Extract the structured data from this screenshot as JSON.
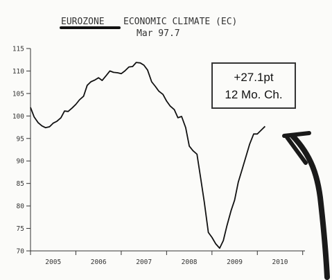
{
  "chart_data": {
    "type": "line",
    "title_highlight": "EUROZONE",
    "title_rest": "ECONOMIC CLIMATE  (EC)",
    "subtitle": "Mar 97.7",
    "xlabel": "",
    "ylabel": "",
    "ylim": [
      70,
      115
    ],
    "yticks": [
      70,
      75,
      80,
      85,
      90,
      95,
      100,
      105,
      110,
      115
    ],
    "xlim": [
      2005.0,
      2011.05
    ],
    "xtick_labels": [
      {
        "label": "2005",
        "year": 2005
      },
      {
        "label": "2006",
        "year": 2006
      },
      {
        "label": "2007",
        "year": 2007
      },
      {
        "label": "2008",
        "year": 2008
      },
      {
        "label": "2009",
        "year": 2009
      },
      {
        "label": "2010",
        "year": 2010
      }
    ],
    "legend": "none",
    "series": [
      {
        "x": [
          2005.0,
          2005.08,
          2005.17,
          2005.25,
          2005.33,
          2005.42,
          2005.5,
          2005.58,
          2005.67,
          2005.75,
          2005.83,
          2005.92,
          2006.0,
          2006.08,
          2006.17,
          2006.25,
          2006.33,
          2006.42,
          2006.5,
          2006.58,
          2006.67,
          2006.75,
          2006.83,
          2006.92,
          2007.0,
          2007.08,
          2007.17,
          2007.25,
          2007.33,
          2007.42,
          2007.5,
          2007.58,
          2007.67,
          2007.75,
          2007.83,
          2007.92,
          2008.0,
          2008.08,
          2008.17,
          2008.25,
          2008.33,
          2008.42,
          2008.5,
          2008.58,
          2008.67,
          2008.75,
          2008.83,
          2008.92,
          2009.0,
          2009.08,
          2009.17,
          2009.25,
          2009.33,
          2009.42,
          2009.5,
          2009.58,
          2009.67,
          2009.75,
          2009.83,
          2009.92,
          2010.0,
          2010.08,
          2010.17
        ],
        "values": [
          101.9,
          99.8,
          98.5,
          97.8,
          97.4,
          97.6,
          98.4,
          98.8,
          99.6,
          101.1,
          101.0,
          101.8,
          102.6,
          103.6,
          104.4,
          106.8,
          107.6,
          108.0,
          108.5,
          107.9,
          109.0,
          110.0,
          109.7,
          109.6,
          109.4,
          110.0,
          110.9,
          111.0,
          111.9,
          111.8,
          111.3,
          110.2,
          107.6,
          106.6,
          105.5,
          104.8,
          103.3,
          102.2,
          101.4,
          99.6,
          99.9,
          97.4,
          93.3,
          92.3,
          91.5,
          86.2,
          80.9,
          74.1,
          73.0,
          71.6,
          70.6,
          72.3,
          75.6,
          78.9,
          81.3,
          85.3,
          88.3,
          91.0,
          93.7,
          96.0,
          96.0,
          96.8,
          97.7
        ]
      }
    ],
    "annotation_line1": "+27.1pt",
    "annotation_line2": "12 Mo. Ch."
  }
}
